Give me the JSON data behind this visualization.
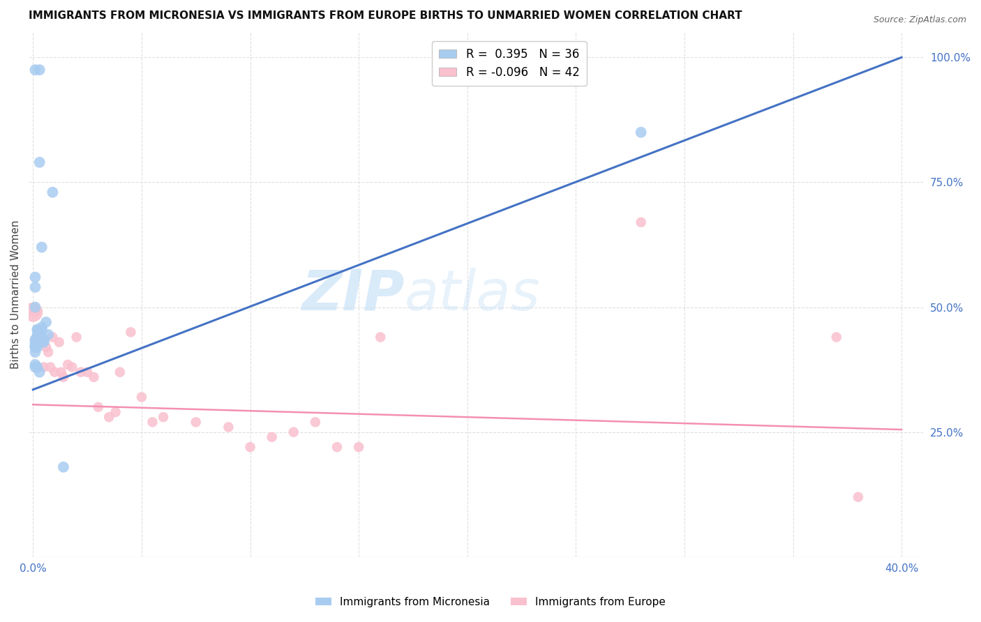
{
  "title": "IMMIGRANTS FROM MICRONESIA VS IMMIGRANTS FROM EUROPE BIRTHS TO UNMARRIED WOMEN CORRELATION CHART",
  "source": "Source: ZipAtlas.com",
  "ylabel": "Births to Unmarried Women",
  "right_yticks": [
    "100.0%",
    "75.0%",
    "50.0%",
    "25.0%"
  ],
  "right_ytick_vals": [
    1.0,
    0.75,
    0.5,
    0.25
  ],
  "legend_blue_r": "R =  0.395",
  "legend_blue_n": "N = 36",
  "legend_pink_r": "R = -0.096",
  "legend_pink_n": "N = 42",
  "blue_color": "#A8CCF0",
  "pink_color": "#F9C0CE",
  "blue_line_color": "#4472C4",
  "pink_line_color": "#F48FB1",
  "watermark_zip": "ZIP",
  "watermark_atlas": "atlas",
  "micronesia_x": [
    0.001,
    0.003,
    0.003,
    0.004,
    0.001,
    0.001,
    0.001,
    0.002,
    0.002,
    0.002,
    0.003,
    0.003,
    0.004,
    0.004,
    0.005,
    0.005,
    0.006,
    0.007,
    0.009,
    0.002,
    0.003,
    0.004,
    0.001,
    0.002,
    0.002,
    0.003,
    0.001,
    0.001,
    0.001,
    0.002,
    0.001,
    0.001,
    0.014,
    0.001,
    0.001,
    0.28
  ],
  "micronesia_y": [
    0.975,
    0.975,
    0.79,
    0.62,
    0.56,
    0.54,
    0.5,
    0.455,
    0.445,
    0.435,
    0.445,
    0.43,
    0.455,
    0.44,
    0.435,
    0.43,
    0.47,
    0.445,
    0.73,
    0.455,
    0.43,
    0.46,
    0.425,
    0.42,
    0.38,
    0.37,
    0.385,
    0.42,
    0.43,
    0.44,
    0.41,
    0.38,
    0.18,
    0.435,
    0.42,
    0.85
  ],
  "europe_x": [
    0.001,
    0.001,
    0.002,
    0.002,
    0.003,
    0.004,
    0.005,
    0.005,
    0.006,
    0.007,
    0.008,
    0.009,
    0.01,
    0.012,
    0.013,
    0.014,
    0.016,
    0.018,
    0.02,
    0.022,
    0.025,
    0.028,
    0.03,
    0.035,
    0.038,
    0.04,
    0.045,
    0.05,
    0.055,
    0.06,
    0.075,
    0.09,
    0.1,
    0.11,
    0.12,
    0.13,
    0.14,
    0.15,
    0.16,
    0.37,
    0.38,
    0.28
  ],
  "europe_y": [
    0.49,
    0.435,
    0.43,
    0.44,
    0.445,
    0.44,
    0.435,
    0.38,
    0.42,
    0.41,
    0.38,
    0.44,
    0.37,
    0.43,
    0.37,
    0.36,
    0.385,
    0.38,
    0.44,
    0.37,
    0.37,
    0.36,
    0.3,
    0.28,
    0.29,
    0.37,
    0.45,
    0.32,
    0.27,
    0.28,
    0.27,
    0.26,
    0.22,
    0.24,
    0.25,
    0.27,
    0.22,
    0.22,
    0.44,
    0.44,
    0.12,
    0.67
  ],
  "blue_line_x": [
    0.0,
    0.4
  ],
  "blue_line_y": [
    0.335,
    1.0
  ],
  "pink_line_x": [
    0.0,
    0.4
  ],
  "pink_line_y": [
    0.305,
    0.255
  ],
  "xlim": [
    -0.002,
    0.41
  ],
  "ylim": [
    0.0,
    1.05
  ],
  "xtick_positions": [
    0.0,
    0.4
  ],
  "xtick_labels": [
    "0.0%",
    "40.0%"
  ],
  "background_color": "#FFFFFF",
  "grid_color": "#E0E0E0",
  "grid_positions": [
    0.0,
    0.05,
    0.1,
    0.15,
    0.2,
    0.25,
    0.3,
    0.35,
    0.4
  ],
  "dot_size_blue": 130,
  "dot_size_pink": 110,
  "dot_size_large_pink": 400
}
